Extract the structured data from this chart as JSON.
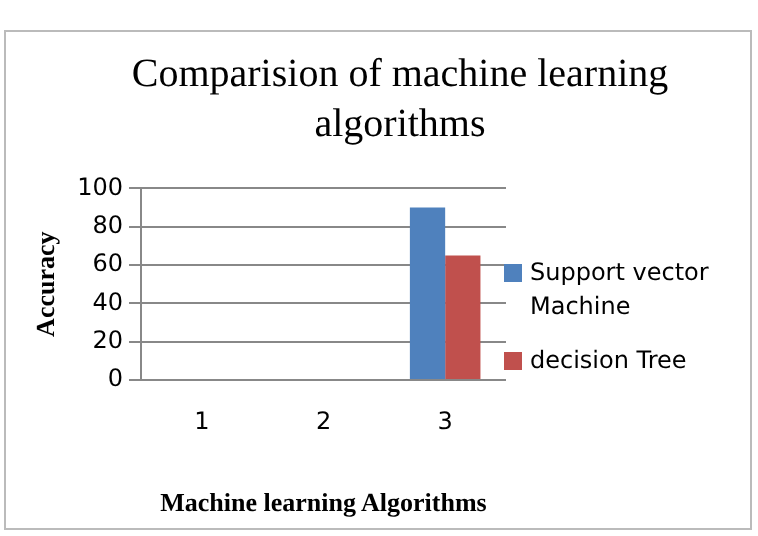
{
  "chart_data": {
    "type": "bar",
    "title": "Comparision of machine learning algorithms",
    "xlabel": "Machine learning Algorithms",
    "ylabel": "Accuracy",
    "categories": [
      "1",
      "2",
      "3"
    ],
    "series": [
      {
        "name": "Support vector Machine",
        "color": "#4f81bd",
        "values": [
          null,
          null,
          90
        ]
      },
      {
        "name": "decision Tree",
        "color": "#c0504d",
        "values": [
          null,
          null,
          65
        ]
      }
    ],
    "ylim": [
      0,
      100
    ],
    "yticks": [
      0,
      20,
      40,
      60,
      80,
      100
    ],
    "grid": "y",
    "legend": "right"
  }
}
